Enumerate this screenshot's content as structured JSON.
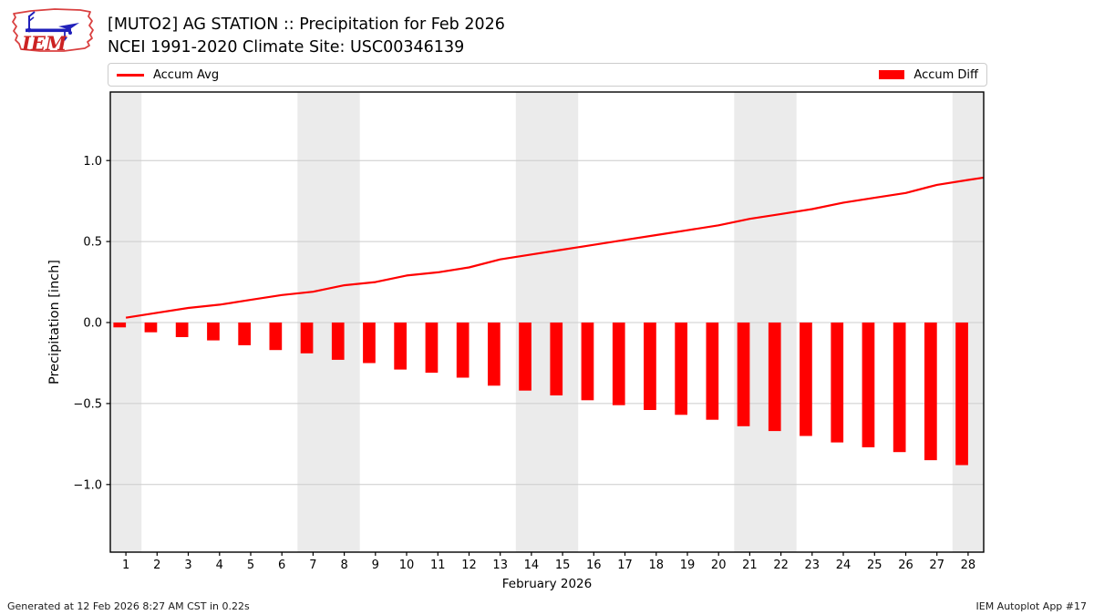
{
  "header": {
    "title": "[MUTO2] AG STATION :: Precipitation for Feb 2026",
    "subtitle": "NCEI 1991-2020 Climate Site: USC00346139",
    "logo_text": "IEM"
  },
  "legend": {
    "avg_label": "Accum Avg",
    "diff_label": "Accum Diff"
  },
  "footer": {
    "generated": "Generated at 12 Feb 2026 8:27 AM CST in 0.22s",
    "app": "IEM Autoplot App #17"
  },
  "colors": {
    "accent_red": "#ff0000",
    "band_gray": "#ebebeb",
    "grid_gray": "#cccccc",
    "axis_black": "#000000",
    "logo_red": "#d94040",
    "logo_blue": "#2020bb"
  },
  "chart_data": {
    "type": "combo-bar-line",
    "title": "[MUTO2] AG STATION :: Precipitation for Feb 2026",
    "subtitle": "NCEI 1991-2020 Climate Site: USC00346139",
    "xlabel": "February 2026",
    "ylabel": "Precipitation [inch]",
    "xlim": [
      0.5,
      28.5
    ],
    "ylim": [
      -1.42,
      1.42
    ],
    "grid": "horizontal",
    "legend_position": "top expanded: line legend left, bar legend right",
    "x": [
      1,
      2,
      3,
      4,
      5,
      6,
      7,
      8,
      9,
      10,
      11,
      12,
      13,
      14,
      15,
      16,
      17,
      18,
      19,
      20,
      21,
      22,
      23,
      24,
      25,
      26,
      27,
      28
    ],
    "xticklabels": [
      "1",
      "2",
      "3",
      "4",
      "5",
      "6",
      "7",
      "8",
      "9",
      "10",
      "11",
      "12",
      "13",
      "14",
      "15",
      "16",
      "17",
      "18",
      "19",
      "20",
      "21",
      "22",
      "23",
      "24",
      "25",
      "26",
      "27",
      "28"
    ],
    "yticks": [
      {
        "value": -1.0,
        "label": "−1.0"
      },
      {
        "value": -0.5,
        "label": "−0.5"
      },
      {
        "value": 0.0,
        "label": "0.0"
      },
      {
        "value": 0.5,
        "label": "0.5"
      },
      {
        "value": 1.0,
        "label": "1.0"
      }
    ],
    "weekend_bands": [
      [
        0.5,
        1.5
      ],
      [
        6.5,
        8.5
      ],
      [
        13.5,
        15.5
      ],
      [
        20.5,
        22.5
      ],
      [
        27.5,
        28.5
      ]
    ],
    "series": [
      {
        "name": "Accum Avg",
        "type": "line",
        "color": "#ff0000",
        "values": [
          0.03,
          0.06,
          0.09,
          0.11,
          0.14,
          0.17,
          0.19,
          0.23,
          0.25,
          0.29,
          0.31,
          0.34,
          0.39,
          0.42,
          0.45,
          0.48,
          0.51,
          0.54,
          0.57,
          0.6,
          0.64,
          0.67,
          0.7,
          0.74,
          0.77,
          0.8,
          0.85,
          0.88
        ]
      },
      {
        "name": "Accum Diff",
        "type": "bar",
        "color": "#ff0000",
        "values": [
          -0.03,
          -0.06,
          -0.09,
          -0.11,
          -0.14,
          -0.17,
          -0.19,
          -0.23,
          -0.25,
          -0.29,
          -0.31,
          -0.34,
          -0.39,
          -0.42,
          -0.45,
          -0.48,
          -0.51,
          -0.54,
          -0.57,
          -0.6,
          -0.64,
          -0.67,
          -0.7,
          -0.74,
          -0.77,
          -0.8,
          -0.85,
          -0.88
        ]
      }
    ]
  }
}
